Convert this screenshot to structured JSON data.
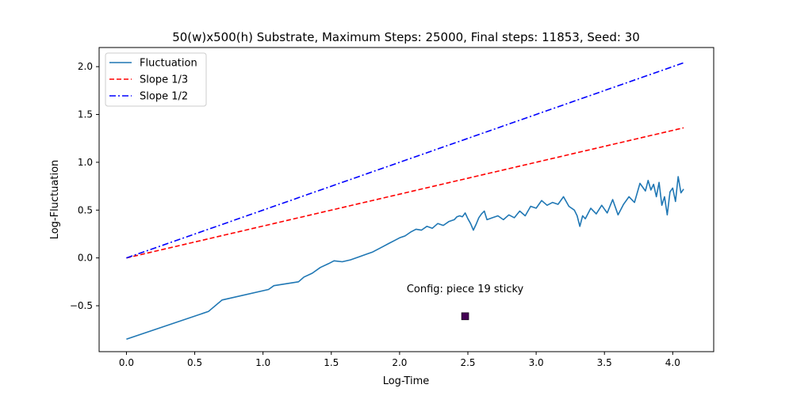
{
  "chart_data": {
    "type": "line",
    "title": "50(w)x500(h) Substrate, Maximum Steps: 25000, Final steps: 11853, Seed: 30",
    "xlabel": "Log-Time",
    "ylabel": "Log-Fluctuation",
    "xlim": [
      -0.2,
      4.3
    ],
    "ylim": [
      -0.98,
      2.2
    ],
    "xticks": [
      0.0,
      0.5,
      1.0,
      1.5,
      2.0,
      2.5,
      3.0,
      3.5,
      4.0
    ],
    "xtick_labels": [
      "0.0",
      "0.5",
      "1.0",
      "1.5",
      "2.0",
      "2.5",
      "3.0",
      "3.5",
      "4.0"
    ],
    "yticks": [
      -0.5,
      0.0,
      0.5,
      1.0,
      1.5,
      2.0
    ],
    "ytick_labels": [
      "−0.5",
      "0.0",
      "0.5",
      "1.0",
      "1.5",
      "2.0"
    ],
    "grid": false,
    "legend_position": "top-left",
    "series": [
      {
        "name": "Fluctuation",
        "color": "#1f77b4",
        "style": "solid",
        "x": [
          0.0,
          0.6,
          0.7,
          1.04,
          1.08,
          1.26,
          1.3,
          1.36,
          1.42,
          1.48,
          1.52,
          1.58,
          1.64,
          1.7,
          1.76,
          1.8,
          1.84,
          1.88,
          1.92,
          1.96,
          2.0,
          2.04,
          2.08,
          2.12,
          2.16,
          2.2,
          2.24,
          2.28,
          2.32,
          2.36,
          2.4,
          2.42,
          2.44,
          2.46,
          2.48,
          2.5,
          2.52,
          2.54,
          2.56,
          2.58,
          2.6,
          2.62,
          2.64,
          2.68,
          2.72,
          2.76,
          2.8,
          2.84,
          2.88,
          2.92,
          2.96,
          3.0,
          3.04,
          3.08,
          3.12,
          3.16,
          3.2,
          3.24,
          3.28,
          3.3,
          3.32,
          3.34,
          3.36,
          3.4,
          3.44,
          3.48,
          3.52,
          3.56,
          3.6,
          3.64,
          3.68,
          3.72,
          3.76,
          3.8,
          3.82,
          3.84,
          3.86,
          3.88,
          3.9,
          3.92,
          3.94,
          3.96,
          3.98,
          4.0,
          4.02,
          4.04,
          4.06,
          4.08
        ],
        "y": [
          -0.85,
          -0.56,
          -0.44,
          -0.33,
          -0.29,
          -0.25,
          -0.2,
          -0.16,
          -0.1,
          -0.06,
          -0.03,
          -0.04,
          -0.02,
          0.01,
          0.04,
          0.06,
          0.09,
          0.12,
          0.15,
          0.18,
          0.21,
          0.23,
          0.27,
          0.3,
          0.29,
          0.33,
          0.31,
          0.36,
          0.34,
          0.38,
          0.4,
          0.43,
          0.44,
          0.43,
          0.47,
          0.41,
          0.36,
          0.29,
          0.35,
          0.42,
          0.46,
          0.49,
          0.4,
          0.42,
          0.44,
          0.4,
          0.45,
          0.42,
          0.49,
          0.44,
          0.54,
          0.52,
          0.6,
          0.55,
          0.58,
          0.56,
          0.64,
          0.54,
          0.5,
          0.44,
          0.33,
          0.44,
          0.41,
          0.52,
          0.46,
          0.55,
          0.47,
          0.61,
          0.45,
          0.56,
          0.64,
          0.58,
          0.78,
          0.7,
          0.81,
          0.71,
          0.77,
          0.64,
          0.79,
          0.55,
          0.64,
          0.45,
          0.69,
          0.73,
          0.59,
          0.85,
          0.68,
          0.72
        ]
      },
      {
        "name": "Slope 1/3",
        "color": "#ff0000",
        "style": "dashed",
        "x": [
          0.0,
          4.08
        ],
        "y": [
          0.0,
          1.36
        ]
      },
      {
        "name": "Slope 1/2",
        "color": "#0000ff",
        "style": "dashdot",
        "x": [
          0.0,
          4.08
        ],
        "y": [
          0.0,
          2.04
        ]
      }
    ],
    "annotation": {
      "text": "Config:  piece 19 sticky",
      "x": 2.48,
      "y": -0.36
    },
    "marker": {
      "x": 2.48,
      "y": -0.61,
      "color": "#440154"
    }
  }
}
